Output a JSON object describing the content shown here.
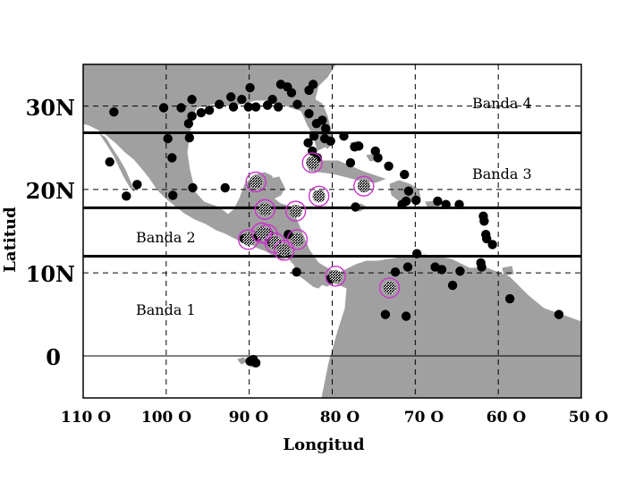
{
  "map": {
    "x_axis_label": "Longitud",
    "y_axis_label": "Latitud",
    "lon_ticks": [
      "110 O",
      "100 O",
      "90 O",
      "80 O",
      "70 O",
      "60 O",
      "50 O"
    ],
    "lat_ticks": [
      "30N",
      "20N",
      "10N",
      "0"
    ],
    "lon_range_deg_west": [
      110,
      50
    ],
    "lat_range_deg_north": [
      -5,
      35
    ],
    "bands": [
      {
        "label": "Banda 1"
      },
      {
        "label": "Banda 2"
      },
      {
        "label": "Banda 3"
      },
      {
        "label": "Banda 4"
      }
    ],
    "band_boundaries_lat": [
      12,
      17.8,
      26.8
    ],
    "colors": {
      "land": "#a0a0a0",
      "sea": "#ffffff",
      "station": "#000000",
      "highlight_ring": "#cc33cc"
    },
    "stations": [
      [
        106.3,
        29.3
      ],
      [
        106.8,
        23.3
      ],
      [
        104.8,
        19.2
      ],
      [
        103.5,
        20.6
      ],
      [
        100.3,
        29.8
      ],
      [
        98.2,
        29.8
      ],
      [
        99.8,
        26.1
      ],
      [
        99.3,
        23.8
      ],
      [
        99.2,
        19.3
      ],
      [
        96.8,
        20.2
      ],
      [
        97.3,
        27.9
      ],
      [
        97.2,
        26.2
      ],
      [
        96.9,
        28.8
      ],
      [
        95.8,
        29.2
      ],
      [
        96.9,
        30.8
      ],
      [
        94.8,
        29.5
      ],
      [
        93.6,
        30.2
      ],
      [
        92.2,
        31.1
      ],
      [
        91.9,
        29.9
      ],
      [
        90.9,
        30.8
      ],
      [
        90.1,
        29.9
      ],
      [
        89.2,
        29.9
      ],
      [
        89.9,
        32.2
      ],
      [
        87.8,
        30.1
      ],
      [
        87.2,
        30.8
      ],
      [
        86.5,
        29.9
      ],
      [
        86.2,
        32.6
      ],
      [
        85.4,
        32.3
      ],
      [
        84.2,
        30.2
      ],
      [
        84.9,
        31.6
      ],
      [
        82.8,
        31.9
      ],
      [
        82.3,
        32.6
      ],
      [
        82.8,
        29.1
      ],
      [
        81.9,
        27.9
      ],
      [
        81.2,
        28.3
      ],
      [
        80.8,
        27.3
      ],
      [
        80.9,
        26.1
      ],
      [
        82.2,
        26.4
      ],
      [
        82.9,
        25.6
      ],
      [
        82.4,
        24.6
      ],
      [
        81.8,
        23.8
      ],
      [
        80.2,
        25.8
      ],
      [
        77.8,
        23.2
      ],
      [
        77.3,
        25.1
      ],
      [
        76.8,
        25.2
      ],
      [
        78.6,
        26.4
      ],
      [
        74.8,
        24.6
      ],
      [
        74.5,
        23.8
      ],
      [
        73.2,
        22.8
      ],
      [
        71.3,
        21.8
      ],
      [
        70.8,
        19.8
      ],
      [
        71.1,
        18.6
      ],
      [
        71.6,
        18.2
      ],
      [
        69.9,
        18.7
      ],
      [
        77.2,
        17.9
      ],
      [
        67.3,
        18.6
      ],
      [
        64.7,
        18.2
      ],
      [
        66.3,
        18.2
      ],
      [
        61.8,
        16.8
      ],
      [
        61.7,
        16.2
      ],
      [
        61.5,
        14.6
      ],
      [
        61.4,
        14.1
      ],
      [
        60.7,
        13.4
      ],
      [
        62.1,
        11.2
      ],
      [
        62.0,
        10.7
      ],
      [
        64.6,
        10.2
      ],
      [
        65.5,
        8.5
      ],
      [
        66.8,
        10.4
      ],
      [
        67.6,
        10.7
      ],
      [
        69.8,
        12.3
      ],
      [
        70.9,
        10.7
      ],
      [
        72.4,
        10.1
      ],
      [
        73.6,
        5.0
      ],
      [
        71.1,
        4.8
      ],
      [
        58.6,
        6.9
      ],
      [
        52.7,
        5.0
      ],
      [
        80.2,
        9.3
      ],
      [
        84.3,
        10.1
      ],
      [
        85.3,
        14.6
      ],
      [
        87.3,
        13.6
      ],
      [
        89.0,
        14.3
      ],
      [
        90.6,
        14.1
      ],
      [
        92.9,
        20.2
      ],
      [
        89.2,
        -0.8
      ],
      [
        89.9,
        -0.6
      ],
      [
        89.5,
        -0.4
      ]
    ],
    "highlighted_stations": [
      [
        89.2,
        20.9
      ],
      [
        88.1,
        17.6
      ],
      [
        90.1,
        14.0
      ],
      [
        87.8,
        14.6
      ],
      [
        86.9,
        13.6
      ],
      [
        88.5,
        14.8
      ],
      [
        85.8,
        12.7
      ],
      [
        84.4,
        17.4
      ],
      [
        84.2,
        14.0
      ],
      [
        82.4,
        23.2
      ],
      [
        81.6,
        19.2
      ],
      [
        76.2,
        20.4
      ],
      [
        79.6,
        9.6
      ],
      [
        73.1,
        8.2
      ]
    ]
  }
}
